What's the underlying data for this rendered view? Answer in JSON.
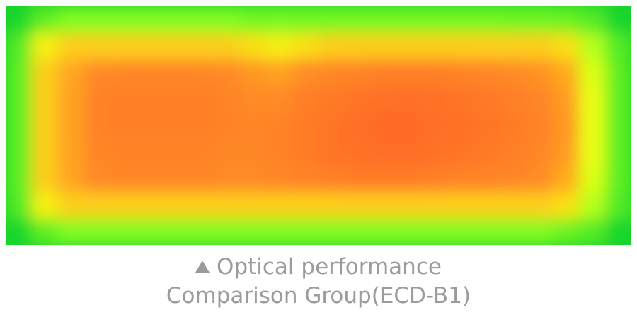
{
  "chart_data": {
    "type": "heatmap",
    "title": "",
    "xlabel": "",
    "ylabel": "",
    "legend": "none",
    "grid": false,
    "color_scale": [
      "#17d72b",
      "#8dff20",
      "#f3ff17",
      "#ffbe1b",
      "#ff8d25",
      "#ff6b25"
    ],
    "intensity_grid": [
      [
        0.0,
        0.12,
        0.18,
        0.18,
        0.18,
        0.18,
        0.18,
        0.18,
        0.18,
        0.16,
        0.16,
        0.16,
        0.16,
        0.16,
        0.16,
        0.16,
        0.16,
        0.16,
        0.16,
        0.15,
        0.15,
        0.14,
        0.1,
        0.0
      ],
      [
        0.1,
        0.45,
        0.55,
        0.55,
        0.55,
        0.55,
        0.55,
        0.55,
        0.55,
        0.5,
        0.45,
        0.5,
        0.55,
        0.55,
        0.55,
        0.55,
        0.55,
        0.55,
        0.55,
        0.55,
        0.55,
        0.5,
        0.28,
        0.1
      ],
      [
        0.12,
        0.55,
        0.7,
        0.82,
        0.84,
        0.84,
        0.84,
        0.84,
        0.82,
        0.76,
        0.72,
        0.8,
        0.84,
        0.86,
        0.88,
        0.88,
        0.88,
        0.86,
        0.84,
        0.82,
        0.78,
        0.68,
        0.35,
        0.12
      ],
      [
        0.12,
        0.55,
        0.72,
        0.86,
        0.88,
        0.88,
        0.88,
        0.88,
        0.86,
        0.82,
        0.82,
        0.88,
        0.92,
        0.95,
        0.96,
        0.98,
        0.96,
        0.94,
        0.92,
        0.88,
        0.84,
        0.74,
        0.38,
        0.12
      ],
      [
        0.12,
        0.55,
        0.72,
        0.86,
        0.88,
        0.88,
        0.88,
        0.88,
        0.86,
        0.84,
        0.86,
        0.9,
        0.94,
        0.98,
        1.0,
        1.0,
        0.98,
        0.96,
        0.94,
        0.9,
        0.86,
        0.76,
        0.38,
        0.12
      ],
      [
        0.12,
        0.55,
        0.72,
        0.84,
        0.86,
        0.86,
        0.86,
        0.86,
        0.84,
        0.84,
        0.86,
        0.9,
        0.94,
        0.96,
        0.98,
        0.98,
        0.96,
        0.94,
        0.92,
        0.88,
        0.84,
        0.74,
        0.38,
        0.12
      ],
      [
        0.12,
        0.55,
        0.7,
        0.82,
        0.84,
        0.84,
        0.84,
        0.84,
        0.82,
        0.82,
        0.84,
        0.86,
        0.88,
        0.9,
        0.9,
        0.9,
        0.88,
        0.86,
        0.86,
        0.84,
        0.8,
        0.68,
        0.35,
        0.12
      ],
      [
        0.1,
        0.45,
        0.55,
        0.55,
        0.55,
        0.55,
        0.55,
        0.55,
        0.55,
        0.55,
        0.55,
        0.55,
        0.55,
        0.55,
        0.55,
        0.55,
        0.55,
        0.55,
        0.55,
        0.55,
        0.55,
        0.5,
        0.28,
        0.1
      ],
      [
        0.0,
        0.12,
        0.18,
        0.18,
        0.18,
        0.18,
        0.18,
        0.18,
        0.18,
        0.18,
        0.18,
        0.18,
        0.18,
        0.18,
        0.18,
        0.18,
        0.18,
        0.18,
        0.18,
        0.18,
        0.18,
        0.14,
        0.1,
        0.0
      ]
    ],
    "caption": {
      "line1": "Optical performance",
      "line2": "Comparison Group(ECD-B1)"
    }
  },
  "icons": {
    "caption_marker": "triangle-up-icon"
  },
  "colors": {
    "caption_text": "#9b9b9b"
  }
}
